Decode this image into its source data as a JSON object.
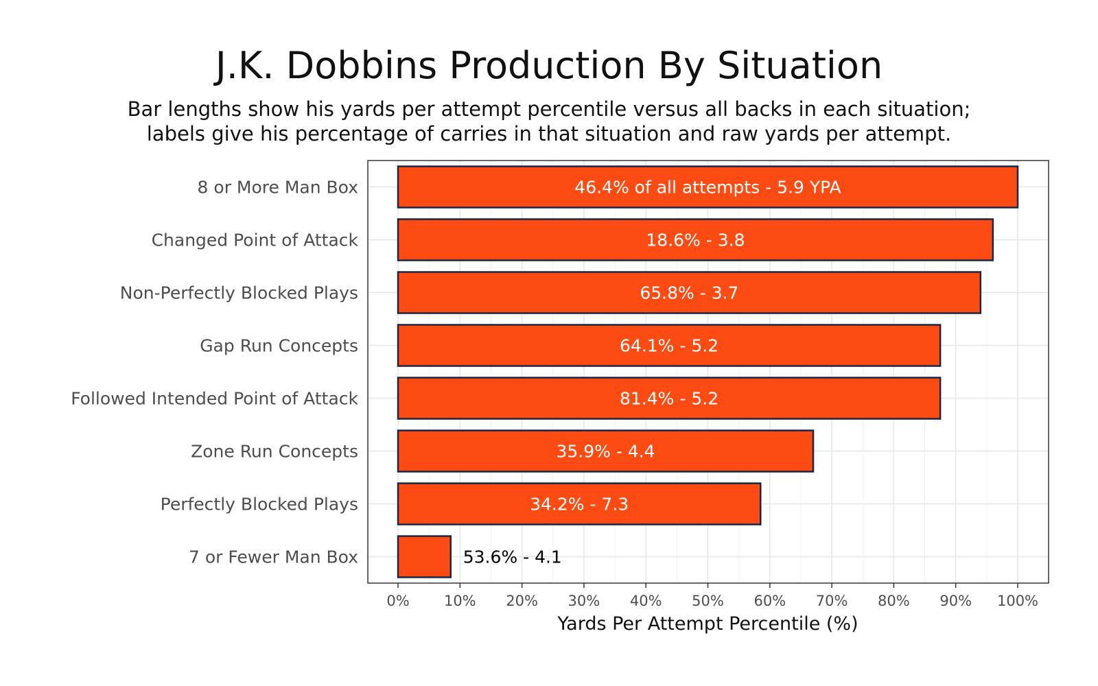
{
  "chart_data": {
    "type": "bar",
    "orientation": "horizontal",
    "title": "J.K. Dobbins Production By Situation",
    "subtitle_lines": [
      "Bar lengths show his yards per attempt percentile versus all backs in each situation;",
      "labels give his percentage of carries in that situation and raw yards per attempt."
    ],
    "xlabel": "Yards Per Attempt Percentile (%)",
    "ylabel": "",
    "xlim": [
      0,
      100
    ],
    "x_ticks": [
      "0%",
      "10%",
      "20%",
      "30%",
      "40%",
      "50%",
      "60%",
      "70%",
      "80%",
      "90%",
      "100%"
    ],
    "categories": [
      "8 or More Man Box",
      "Changed Point of Attack",
      "Non-Perfectly Blocked Plays",
      "Gap Run Concepts",
      "Followed Intended Point of Attack",
      "Zone Run Concepts",
      "Perfectly Blocked Plays",
      "7 or Fewer Man Box"
    ],
    "values": [
      100,
      96,
      94,
      87.5,
      87.5,
      67,
      58.5,
      8.5
    ],
    "bar_labels": [
      "46.4% of all attempts - 5.9 YPA",
      "18.6% - 3.8",
      "65.8% - 3.7",
      "64.1% - 5.2",
      "81.4% - 5.2",
      "35.9% - 4.4",
      "34.2% - 7.3",
      "53.6% - 4.1"
    ],
    "grid": true,
    "legend": "none",
    "colors": {
      "bar_fill": "#fc4c13",
      "bar_outline": "#1b2544",
      "label_inside": "#ffffff",
      "label_outside": "#000000",
      "grid": "#e6e6e6",
      "panel_border": "#333333"
    }
  }
}
